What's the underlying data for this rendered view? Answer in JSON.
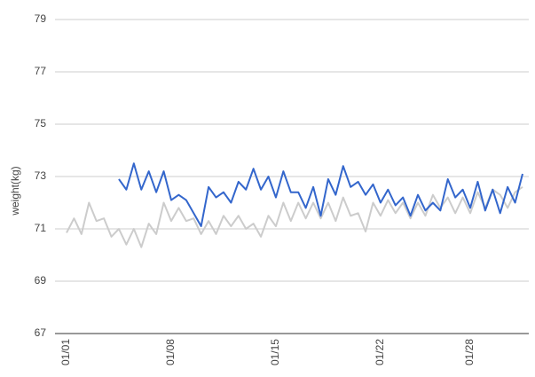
{
  "chart_data": {
    "type": "line",
    "y_label": "weight(kg)",
    "categories": [
      "01/01",
      null,
      null,
      null,
      null,
      null,
      null,
      null,
      null,
      null,
      null,
      null,
      null,
      null,
      "01/08",
      null,
      null,
      null,
      null,
      null,
      null,
      null,
      null,
      null,
      null,
      null,
      null,
      null,
      "01/15",
      null,
      null,
      null,
      null,
      null,
      null,
      null,
      null,
      null,
      null,
      null,
      null,
      null,
      "01/22",
      null,
      null,
      null,
      null,
      null,
      null,
      null,
      null,
      null,
      null,
      null,
      "01/28",
      null,
      null,
      null,
      null,
      null,
      null,
      null
    ],
    "series": [
      {
        "color": "#cccccc",
        "values": [
          70.85,
          71.4,
          70.8,
          72.0,
          71.3,
          71.4,
          70.7,
          71.0,
          70.4,
          71.0,
          70.3,
          71.2,
          70.8,
          72.0,
          71.3,
          71.8,
          71.3,
          71.4,
          70.8,
          71.3,
          70.8,
          71.5,
          71.1,
          71.5,
          71.0,
          71.2,
          70.7,
          71.5,
          71.1,
          72.0,
          71.3,
          72.0,
          71.4,
          72.0,
          71.4,
          72.0,
          71.3,
          72.2,
          71.5,
          71.6,
          70.9,
          72.0,
          71.5,
          72.1,
          71.6,
          72.0,
          71.4,
          72.0,
          71.5,
          72.3,
          71.8,
          72.2,
          71.6,
          72.2,
          71.6,
          72.4,
          71.8,
          72.5,
          72.3,
          71.8,
          72.4,
          72.6
        ]
      },
      {
        "color": "#3366cc",
        "values": [
          null,
          null,
          null,
          null,
          null,
          null,
          null,
          72.9,
          72.5,
          73.5,
          72.5,
          73.2,
          72.4,
          73.2,
          72.1,
          72.3,
          72.1,
          71.6,
          71.1,
          72.6,
          72.2,
          72.4,
          72.0,
          72.8,
          72.5,
          73.3,
          72.5,
          73.0,
          72.2,
          73.2,
          72.4,
          72.4,
          71.8,
          72.6,
          71.5,
          72.9,
          72.3,
          73.4,
          72.6,
          72.8,
          72.3,
          72.7,
          72.0,
          72.5,
          71.9,
          72.2,
          71.5,
          72.3,
          71.7,
          72.0,
          71.7,
          72.9,
          72.2,
          72.5,
          71.8,
          72.8,
          71.7,
          72.5,
          71.6,
          72.6,
          72.0,
          73.1
        ]
      }
    ],
    "ylim": [
      67,
      79
    ],
    "yticks": [
      67,
      69,
      71,
      73,
      75,
      77,
      79
    ],
    "grid": true
  }
}
